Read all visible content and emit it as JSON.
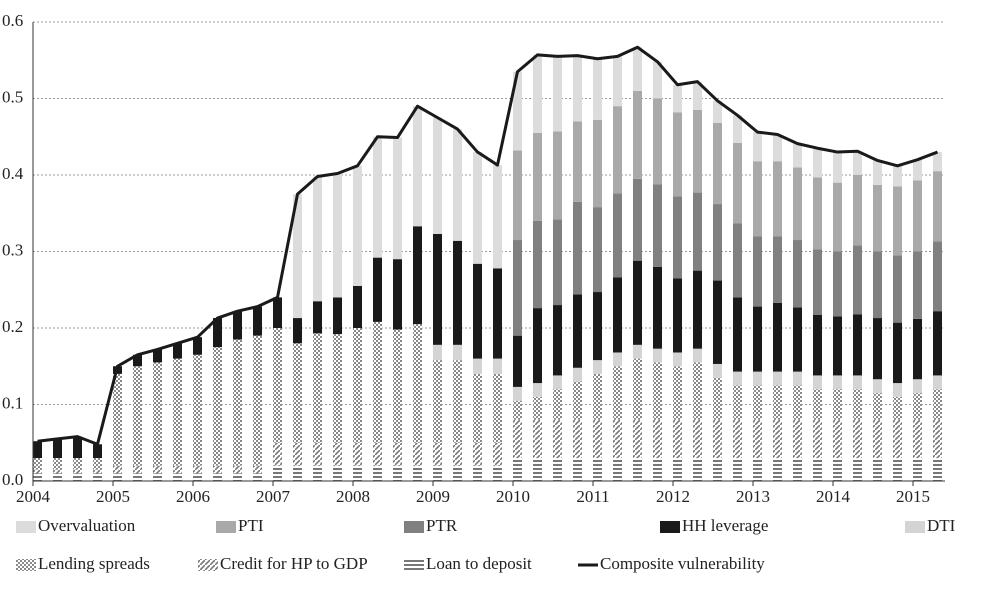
{
  "chart_data": {
    "type": "bar",
    "stacked": true,
    "grid": true,
    "x": [
      2004,
      2004.25,
      2004.5,
      2004.75,
      2005,
      2005.25,
      2005.5,
      2005.75,
      2006,
      2006.25,
      2006.5,
      2006.75,
      2007,
      2007.25,
      2007.5,
      2007.75,
      2008,
      2008.25,
      2008.5,
      2008.75,
      2009,
      2009.25,
      2009.5,
      2009.75,
      2010,
      2010.25,
      2010.5,
      2010.75,
      2011,
      2011.25,
      2011.5,
      2011.75,
      2012,
      2012.25,
      2012.5,
      2012.75,
      2013,
      2013.25,
      2013.5,
      2013.75,
      2014,
      2014.25,
      2014.5,
      2014.75,
      2015,
      2015.25
    ],
    "xlim": [
      2004,
      2015.4
    ],
    "xticks": [
      2004,
      2005,
      2006,
      2007,
      2008,
      2009,
      2010,
      2011,
      2012,
      2013,
      2014,
      2015
    ],
    "ylim": [
      0,
      0.6
    ],
    "yticks": [
      {
        "value": 0,
        "label": "0.0"
      },
      0.1,
      0.2,
      0.3,
      0.4,
      0.5,
      0.6
    ],
    "series": [
      {
        "name": "Overvaluation",
        "color": "#dcdcdc",
        "pattern": "solid",
        "values": [
          0,
          0,
          0,
          0,
          0,
          0,
          0,
          0,
          0,
          0,
          0,
          0,
          0,
          0.162,
          0.163,
          0.162,
          0.157,
          0.158,
          0.159,
          0.157,
          0.152,
          0.146,
          0.146,
          0.135,
          0.103,
          0.102,
          0.098,
          0.086,
          0.08,
          0.065,
          0.057,
          0.048,
          0.036,
          0.037,
          0.029,
          0.036,
          0.038,
          0.035,
          0.031,
          0.038,
          0.04,
          0.031,
          0.032,
          0.027,
          0.027,
          0.025
        ]
      },
      {
        "name": "PTI",
        "color": "#a9a9a9",
        "pattern": "solid",
        "values": [
          0,
          0,
          0,
          0,
          0,
          0,
          0,
          0,
          0,
          0,
          0,
          0,
          0,
          0,
          0,
          0,
          0,
          0,
          0,
          0,
          0,
          0,
          0,
          0,
          0.117,
          0.115,
          0.115,
          0.105,
          0.114,
          0.114,
          0.115,
          0.112,
          0.11,
          0.108,
          0.106,
          0.105,
          0.098,
          0.098,
          0.095,
          0.094,
          0.09,
          0.092,
          0.087,
          0.09,
          0.093,
          0.092
        ]
      },
      {
        "name": "PTR",
        "color": "#808080",
        "pattern": "solid",
        "values": [
          0,
          0,
          0,
          0,
          0,
          0,
          0,
          0,
          0,
          0,
          0,
          0,
          0,
          0,
          0,
          0,
          0,
          0,
          0,
          0,
          0,
          0,
          0,
          0,
          0.125,
          0.114,
          0.112,
          0.121,
          0.111,
          0.11,
          0.107,
          0.108,
          0.107,
          0.102,
          0.1,
          0.097,
          0.092,
          0.087,
          0.088,
          0.086,
          0.085,
          0.09,
          0.087,
          0.088,
          0.088,
          0.091
        ]
      },
      {
        "name": "HH leverage",
        "color": "#1a1a1a",
        "pattern": "solid",
        "values": [
          0.022,
          0.025,
          0.028,
          0.018,
          0.01,
          0.015,
          0.017,
          0.02,
          0.023,
          0.038,
          0.037,
          0.038,
          0.04,
          0.033,
          0.042,
          0.048,
          0.055,
          0.084,
          0.092,
          0.128,
          0.145,
          0.136,
          0.124,
          0.118,
          0.067,
          0.098,
          0.092,
          0.096,
          0.089,
          0.098,
          0.11,
          0.107,
          0.097,
          0.102,
          0.109,
          0.097,
          0.085,
          0.09,
          0.084,
          0.079,
          0.077,
          0.08,
          0.08,
          0.079,
          0.079,
          0.084
        ]
      },
      {
        "name": "DTI",
        "color": "#d4d4d4",
        "pattern": "solid",
        "values": [
          0,
          0,
          0,
          0,
          0,
          0,
          0,
          0,
          0,
          0,
          0,
          0,
          0,
          0,
          0,
          0,
          0,
          0,
          0,
          0,
          0.02,
          0.02,
          0.02,
          0.02,
          0.018,
          0.018,
          0.018,
          0.018,
          0.018,
          0.018,
          0.018,
          0.018,
          0.018,
          0.018,
          0.018,
          0.018,
          0.018,
          0.018,
          0.018,
          0.018,
          0.018,
          0.018,
          0.018,
          0.018,
          0.018,
          0.018
        ]
      },
      {
        "name": "Lending spreads",
        "color": "#9a9a9a",
        "pattern": "checker",
        "values": [
          0.015,
          0.015,
          0.015,
          0.015,
          0.12,
          0.13,
          0.135,
          0.14,
          0.145,
          0.155,
          0.165,
          0.17,
          0.15,
          0.13,
          0.143,
          0.142,
          0.15,
          0.158,
          0.148,
          0.155,
          0.108,
          0.108,
          0.09,
          0.09,
          0.025,
          0.03,
          0.04,
          0.05,
          0.06,
          0.07,
          0.08,
          0.075,
          0.07,
          0.075,
          0.055,
          0.045,
          0.045,
          0.045,
          0.045,
          0.04,
          0.04,
          0.04,
          0.035,
          0.03,
          0.035,
          0.04
        ]
      },
      {
        "name": "Credit for HP to GDP",
        "color": "#8a8a8a",
        "pattern": "diagonal",
        "values": [
          0.005,
          0.005,
          0.005,
          0.005,
          0.01,
          0.01,
          0.01,
          0.01,
          0.01,
          0.01,
          0.01,
          0.01,
          0.03,
          0.03,
          0.03,
          0.03,
          0.03,
          0.03,
          0.03,
          0.03,
          0.03,
          0.03,
          0.03,
          0.03,
          0.05,
          0.05,
          0.05,
          0.05,
          0.05,
          0.05,
          0.05,
          0.05,
          0.05,
          0.05,
          0.05,
          0.05,
          0.05,
          0.05,
          0.05,
          0.05,
          0.05,
          0.05,
          0.05,
          0.05,
          0.05,
          0.05
        ]
      },
      {
        "name": "Loan to deposit",
        "color": "#7a7a7a",
        "pattern": "horizontal",
        "values": [
          0.01,
          0.01,
          0.01,
          0.01,
          0.01,
          0.01,
          0.01,
          0.01,
          0.01,
          0.01,
          0.01,
          0.01,
          0.02,
          0.02,
          0.02,
          0.02,
          0.02,
          0.02,
          0.02,
          0.02,
          0.02,
          0.02,
          0.02,
          0.02,
          0.03,
          0.03,
          0.03,
          0.03,
          0.03,
          0.03,
          0.03,
          0.03,
          0.03,
          0.03,
          0.03,
          0.03,
          0.03,
          0.03,
          0.03,
          0.03,
          0.03,
          0.03,
          0.03,
          0.03,
          0.03,
          0.03
        ]
      },
      {
        "name": "Composite vulnerability",
        "type": "line",
        "color": "#1a1a1a",
        "values": [
          0.052,
          0.055,
          0.058,
          0.048,
          0.15,
          0.165,
          0.172,
          0.18,
          0.188,
          0.213,
          0.222,
          0.228,
          0.24,
          0.375,
          0.398,
          0.402,
          0.412,
          0.45,
          0.449,
          0.49,
          0.475,
          0.46,
          0.43,
          0.413,
          0.535,
          0.557,
          0.555,
          0.556,
          0.552,
          0.555,
          0.567,
          0.548,
          0.518,
          0.522,
          0.497,
          0.478,
          0.456,
          0.453,
          0.441,
          0.435,
          0.43,
          0.431,
          0.419,
          0.412,
          0.42,
          0.43
        ]
      }
    ]
  }
}
